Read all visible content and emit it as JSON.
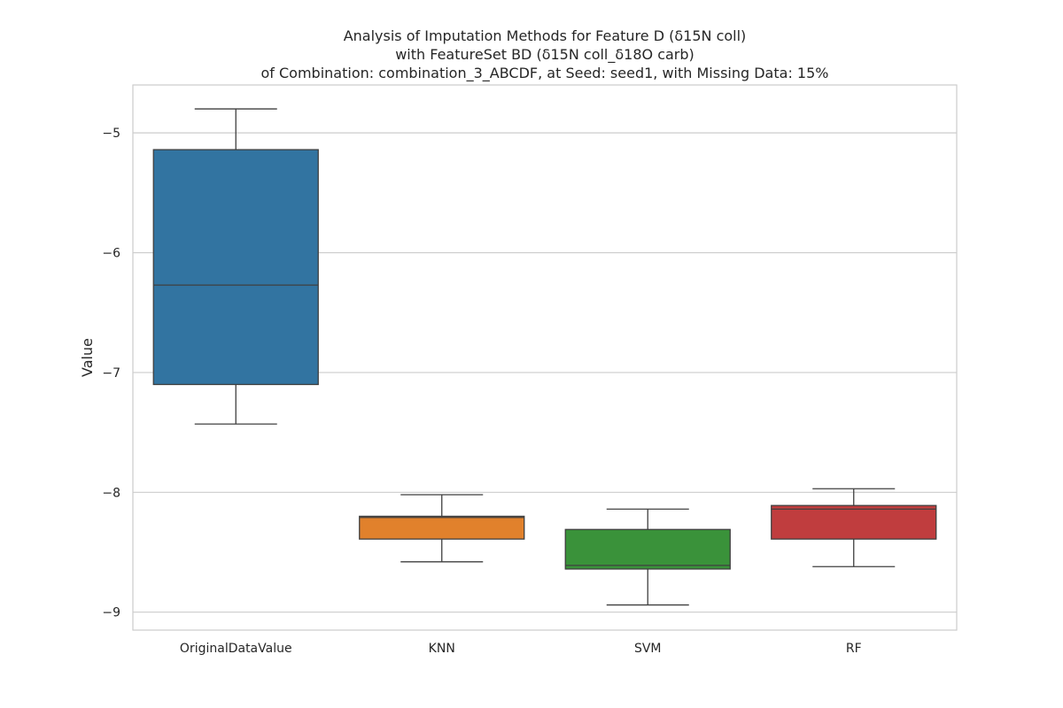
{
  "chart_data": {
    "type": "box",
    "title_lines": [
      "Analysis of Imputation Methods for Feature D (δ15N coll)",
      "with FeatureSet BD (δ15N coll_δ18O carb)",
      "of Combination: combination_3_ABCDF, at Seed: seed1, with Missing Data: 15%"
    ],
    "xlabel": "",
    "ylabel": "Value",
    "ylim": [
      -9.15,
      -4.6
    ],
    "yticks": [
      -5,
      -6,
      -7,
      -8,
      -9
    ],
    "ytick_labels": [
      "−5",
      "−6",
      "−7",
      "−8",
      "−9"
    ],
    "grid": true,
    "categories": [
      "OriginalDataValue",
      "KNN",
      "SVM",
      "RF"
    ],
    "boxes": [
      {
        "category": "OriginalDataValue",
        "whisker_low": -7.43,
        "q1": -7.1,
        "median": -6.27,
        "q3": -5.14,
        "whisker_high": -4.8,
        "color": "#3274a1"
      },
      {
        "category": "KNN",
        "whisker_low": -8.58,
        "q1": -8.39,
        "median": -8.21,
        "q3": -8.2,
        "whisker_high": -8.02,
        "color": "#e1812c"
      },
      {
        "category": "SVM",
        "whisker_low": -8.94,
        "q1": -8.64,
        "median": -8.61,
        "q3": -8.31,
        "whisker_high": -8.14,
        "color": "#3a923a"
      },
      {
        "category": "RF",
        "whisker_low": -8.62,
        "q1": -8.39,
        "median": -8.14,
        "q3": -8.11,
        "whisker_high": -7.97,
        "color": "#c03d3e"
      }
    ]
  }
}
